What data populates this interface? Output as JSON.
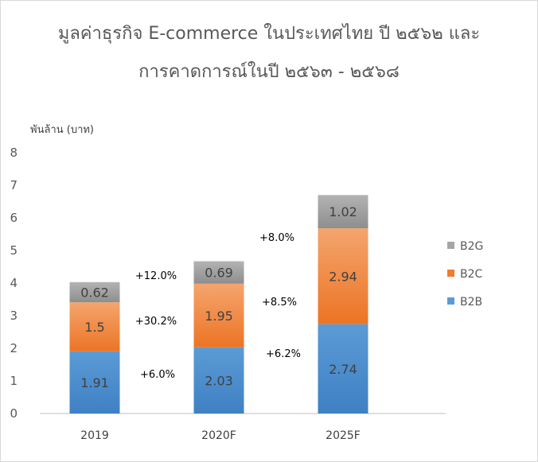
{
  "chart_data": {
    "type": "bar",
    "stacked": true,
    "title": [
      "มูลค่าธุรกิจ E-commerce ในประเทศไทย ปี ๒๕๖๒ และ",
      "การคาดการณ์ในปี ๒๕๖๓ - ๒๕๖๘"
    ],
    "ylabel": "พันล้าน (บาท)",
    "xlabel": "",
    "ylim": [
      0,
      8
    ],
    "yticks": [
      "0",
      "1",
      "2",
      "3",
      "4",
      "5",
      "6",
      "7",
      "8"
    ],
    "categories": [
      "2019",
      "2020F",
      "2025F"
    ],
    "series": [
      {
        "name": "B2B",
        "values": [
          1.91,
          2.03,
          2.74
        ],
        "labels": [
          "1.91",
          "2.03",
          "2.74"
        ],
        "color": "#5b9bd5",
        "color_top": "#5b9bd5",
        "color_bottom": "#3f80c4"
      },
      {
        "name": "B2C",
        "values": [
          1.5,
          1.95,
          2.94
        ],
        "labels": [
          "1.5",
          "1.95",
          "2.94"
        ],
        "color": "#ed7d31",
        "color_top": "#f4a56e",
        "color_bottom": "#ec7425"
      },
      {
        "name": "B2G",
        "values": [
          0.62,
          0.69,
          1.02
        ],
        "labels": [
          "0.62",
          "0.69",
          "1.02"
        ],
        "color": "#a5a5a5",
        "color_top": "#b3b3b3",
        "color_bottom": "#8e8e8e"
      }
    ],
    "growth_annotations": [
      {
        "text": "+12.0%",
        "between": [
          0,
          1
        ],
        "series": "B2G"
      },
      {
        "text": "+30.2%",
        "between": [
          0,
          1
        ],
        "series": "B2C"
      },
      {
        "text": "+6.0%",
        "between": [
          0,
          1
        ],
        "series": "B2B"
      },
      {
        "text": "+8.0%",
        "between": [
          1,
          2
        ],
        "series": "B2G"
      },
      {
        "text": "+8.5%",
        "between": [
          1,
          2
        ],
        "series": "B2C"
      },
      {
        "text": "+6.2%",
        "between": [
          1,
          2
        ],
        "series": "B2B"
      }
    ],
    "legend": {
      "placement": "right",
      "order": [
        "B2G",
        "B2C",
        "B2B"
      ]
    },
    "grid": false
  }
}
